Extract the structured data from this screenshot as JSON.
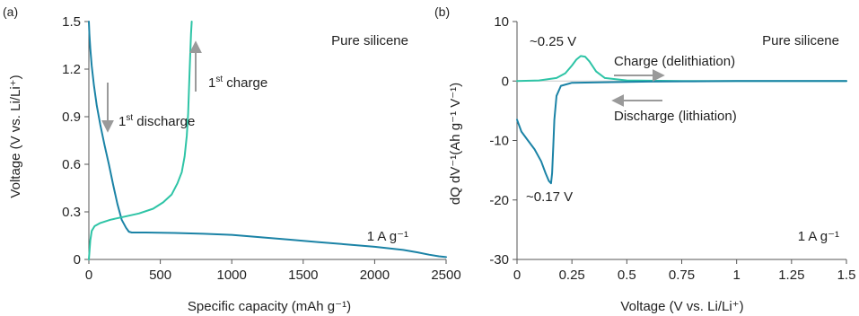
{
  "colors": {
    "charge": "#2ec4a6",
    "discharge": "#1b83a6",
    "arrow": "#9a9a9a",
    "axis": "#555555"
  },
  "chart_data": [
    {
      "panel_label": "(a)",
      "type": "line",
      "title": "",
      "xlabel": "Specific capacity (mAh g⁻¹)",
      "ylabel": "Voltage (V vs. Li/Li⁺)",
      "xlim": [
        0,
        2500
      ],
      "ylim": [
        0,
        1.5
      ],
      "xticks": [
        "0",
        "500",
        "1000",
        "1500",
        "2000",
        "2500"
      ],
      "xtick_values": [
        0,
        500,
        1000,
        1500,
        2000,
        2500
      ],
      "yticks": [
        "0",
        "0.3",
        "0.6",
        "0.9",
        "1.2",
        "1.5"
      ],
      "ytick_values": [
        0,
        0.3,
        0.6,
        0.9,
        1.2,
        1.5
      ],
      "grid": false,
      "annotations": {
        "material": "Pure silicene",
        "rate": "1 A g⁻¹",
        "discharge_label": {
          "base": "1",
          "sup": "st",
          "rest": " discharge"
        },
        "charge_label": {
          "base": "1",
          "sup": "st",
          "rest": " charge"
        }
      },
      "series": [
        {
          "key": "discharge",
          "x": [
            0,
            4,
            10,
            20,
            35,
            55,
            80,
            110,
            140,
            170,
            200,
            230,
            260,
            280,
            300,
            400,
            600,
            800,
            1000,
            1200,
            1400,
            1600,
            1800,
            2000,
            2100,
            2200,
            2300,
            2380,
            2450,
            2500
          ],
          "y": [
            1.5,
            1.42,
            1.33,
            1.22,
            1.1,
            0.97,
            0.85,
            0.72,
            0.6,
            0.47,
            0.35,
            0.25,
            0.2,
            0.175,
            0.17,
            0.17,
            0.167,
            0.162,
            0.155,
            0.14,
            0.125,
            0.11,
            0.095,
            0.08,
            0.07,
            0.06,
            0.045,
            0.03,
            0.02,
            0.015
          ]
        },
        {
          "key": "charge",
          "x": [
            0,
            5,
            10,
            20,
            40,
            80,
            150,
            250,
            350,
            450,
            520,
            580,
            620,
            650,
            670,
            685,
            695,
            700,
            705,
            710,
            715,
            720
          ],
          "y": [
            0.0,
            0.06,
            0.12,
            0.18,
            0.21,
            0.23,
            0.25,
            0.27,
            0.29,
            0.32,
            0.36,
            0.41,
            0.48,
            0.55,
            0.65,
            0.78,
            0.92,
            1.05,
            1.18,
            1.3,
            1.42,
            1.5
          ]
        }
      ]
    },
    {
      "panel_label": "(b)",
      "type": "line",
      "title": "",
      "xlabel": "Voltage (V vs. Li/Li⁺)",
      "ylabel": "dQ dV⁻¹(Ah g⁻¹ V⁻¹)",
      "xlim": [
        0,
        1.5
      ],
      "ylim": [
        -30,
        10
      ],
      "xticks": [
        "0",
        "0.25",
        "0.5",
        "0.75",
        "1",
        "1.25",
        "1.5"
      ],
      "xtick_values": [
        0,
        0.25,
        0.5,
        0.75,
        1,
        1.25,
        1.5
      ],
      "yticks": [
        "10",
        "0",
        "-10",
        "-20",
        "-30"
      ],
      "ytick_values": [
        10,
        0,
        -10,
        -20,
        -30
      ],
      "grid": false,
      "annotations": {
        "material": "Pure silicene",
        "rate": "1 A g⁻¹",
        "peak_charge": "~0.25 V",
        "peak_discharge": "~0.17 V",
        "charge_arrow_label": "Charge (delithiation)",
        "discharge_arrow_label": "Discharge (lithiation)"
      },
      "series": [
        {
          "key": "charge",
          "x": [
            0,
            0.1,
            0.18,
            0.22,
            0.25,
            0.27,
            0.29,
            0.31,
            0.33,
            0.36,
            0.4,
            0.5,
            0.75,
            1.0,
            1.25,
            1.5
          ],
          "y": [
            0,
            0.1,
            0.5,
            1.3,
            2.6,
            3.6,
            4.2,
            4.1,
            3.3,
            1.6,
            0.5,
            0.1,
            0.0,
            0.0,
            0.0,
            0.0
          ]
        },
        {
          "key": "discharge",
          "x": [
            0,
            0.02,
            0.05,
            0.08,
            0.11,
            0.13,
            0.145,
            0.155,
            0.16,
            0.165,
            0.17,
            0.18,
            0.2,
            0.25,
            0.4,
            0.6,
            0.8,
            1.0,
            1.25,
            1.5
          ],
          "y": [
            -6.5,
            -8.5,
            -10,
            -11.5,
            -13.5,
            -15.5,
            -16.8,
            -17.2,
            -15.5,
            -11,
            -6.5,
            -2.5,
            -0.8,
            -0.3,
            -0.2,
            -0.1,
            -0.05,
            0.0,
            0.0,
            0.0
          ]
        }
      ]
    }
  ]
}
